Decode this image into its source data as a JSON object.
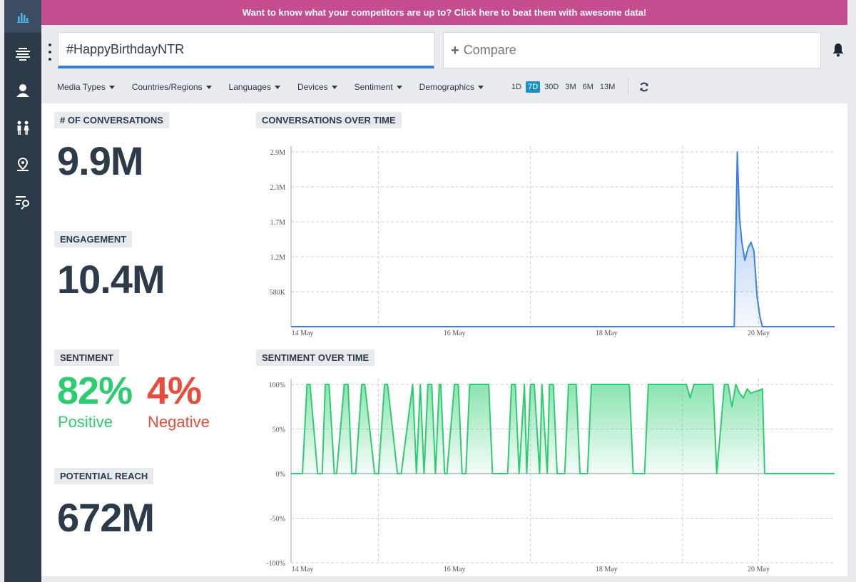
{
  "banner": {
    "text": "Want to know what your competitors are up to? Click here to beat them with awesome data!"
  },
  "search": {
    "value": "#HappyBirthdayNTR"
  },
  "compare": {
    "label": "Compare"
  },
  "filters": [
    "Media Types",
    "Countries/Regions",
    "Languages",
    "Devices",
    "Sentiment",
    "Demographics"
  ],
  "periods": [
    "1D",
    "7D",
    "30D",
    "3M",
    "6M",
    "13M"
  ],
  "active_period": "7D",
  "sidebar": {
    "icons": [
      "bar-chart-icon",
      "stack-icon",
      "profile-icon",
      "people-icon",
      "location-pin-icon",
      "list-search-icon"
    ]
  },
  "metrics": {
    "conversations": {
      "label": "# OF CONVERSATIONS",
      "value": "9.9M"
    },
    "engagement": {
      "label": "ENGAGEMENT",
      "value": "10.4M"
    },
    "sentiment": {
      "label": "SENTIMENT",
      "positive_value": "82%",
      "positive_label": "Positive",
      "negative_value": "4%",
      "negative_label": "Negative"
    },
    "reach": {
      "label": "POTENTIAL REACH",
      "value": "672M"
    }
  },
  "colors": {
    "banner": "#c54d8f",
    "sidebar": "#2c3949",
    "accent": "#2f80d1",
    "positive": "#2ecc71",
    "negative": "#e74c3c"
  },
  "chart_data": [
    {
      "type": "area",
      "title": "CONVERSATIONS OVER TIME",
      "x_ticks": [
        "14 May",
        "16 May",
        "18 May",
        "20 May"
      ],
      "y_ticks": [
        "580K",
        "1.2M",
        "1.7M",
        "2.3M",
        "2.9M"
      ],
      "ylim": [
        0,
        2900000
      ],
      "x_range_days": [
        13.85,
        21.0
      ],
      "grid": true,
      "color": "#3b82e0",
      "series": [
        {
          "x": [
            13.85,
            19.6,
            19.68,
            19.72,
            19.75,
            19.78,
            19.82,
            19.86,
            19.9,
            19.94,
            19.98,
            20.02,
            20.05,
            20.1,
            21.0
          ],
          "values": [
            0,
            0,
            0,
            2900000,
            1800000,
            1400000,
            1100000,
            1300000,
            1400000,
            1250000,
            500000,
            150000,
            0,
            0,
            0
          ]
        }
      ]
    },
    {
      "type": "area",
      "title": "SENTIMENT OVER TIME",
      "x_ticks": [
        "14 May",
        "16 May",
        "18 May",
        "20 May"
      ],
      "y_ticks": [
        "100%",
        "50%",
        "0%",
        "-50%",
        "-100%"
      ],
      "ylim": [
        -100,
        100
      ],
      "x_range_days": [
        13.85,
        21.0
      ],
      "grid": true,
      "color": "#2ecc71",
      "series": [
        {
          "x": [
            13.85,
            14.0,
            14.06,
            14.1,
            14.2,
            14.26,
            14.3,
            14.35,
            14.42,
            14.45,
            14.55,
            14.6,
            14.65,
            14.7,
            14.78,
            14.82,
            14.95,
            15.0,
            15.08,
            15.12,
            15.25,
            15.3,
            15.45,
            15.5,
            15.55,
            15.6,
            15.65,
            15.7,
            15.75,
            15.8,
            15.82,
            15.87,
            15.9,
            16.0,
            16.05,
            16.1,
            16.15,
            16.2,
            16.25,
            16.45,
            16.5,
            16.7,
            16.75,
            16.8,
            16.85,
            16.92,
            16.95,
            17.0,
            17.05,
            17.12,
            17.15,
            17.22,
            17.25,
            17.3,
            17.35,
            17.45,
            17.5,
            17.6,
            17.65,
            17.75,
            17.8,
            17.85,
            17.9,
            18.3,
            18.35,
            18.5,
            18.55,
            18.6,
            18.65,
            19.05,
            19.1,
            19.15,
            19.2,
            19.4,
            19.45,
            19.55,
            19.6,
            19.65,
            19.7,
            19.75,
            19.8,
            19.85,
            19.9,
            19.95,
            20.0,
            20.05,
            20.08,
            21.0
          ],
          "values": [
            0,
            0,
            100,
            100,
            0,
            0,
            100,
            100,
            0,
            0,
            100,
            100,
            0,
            0,
            100,
            100,
            0,
            0,
            100,
            100,
            0,
            0,
            100,
            0,
            100,
            0,
            100,
            100,
            0,
            100,
            100,
            0,
            0,
            100,
            100,
            0,
            0,
            100,
            100,
            100,
            0,
            0,
            100,
            100,
            0,
            100,
            0,
            100,
            100,
            0,
            100,
            0,
            100,
            100,
            0,
            0,
            100,
            100,
            0,
            0,
            100,
            100,
            100,
            100,
            0,
            0,
            100,
            100,
            100,
            100,
            85,
            100,
            100,
            100,
            0,
            100,
            100,
            75,
            100,
            90,
            85,
            95,
            90,
            92,
            93,
            95,
            0,
            0
          ]
        }
      ]
    }
  ]
}
